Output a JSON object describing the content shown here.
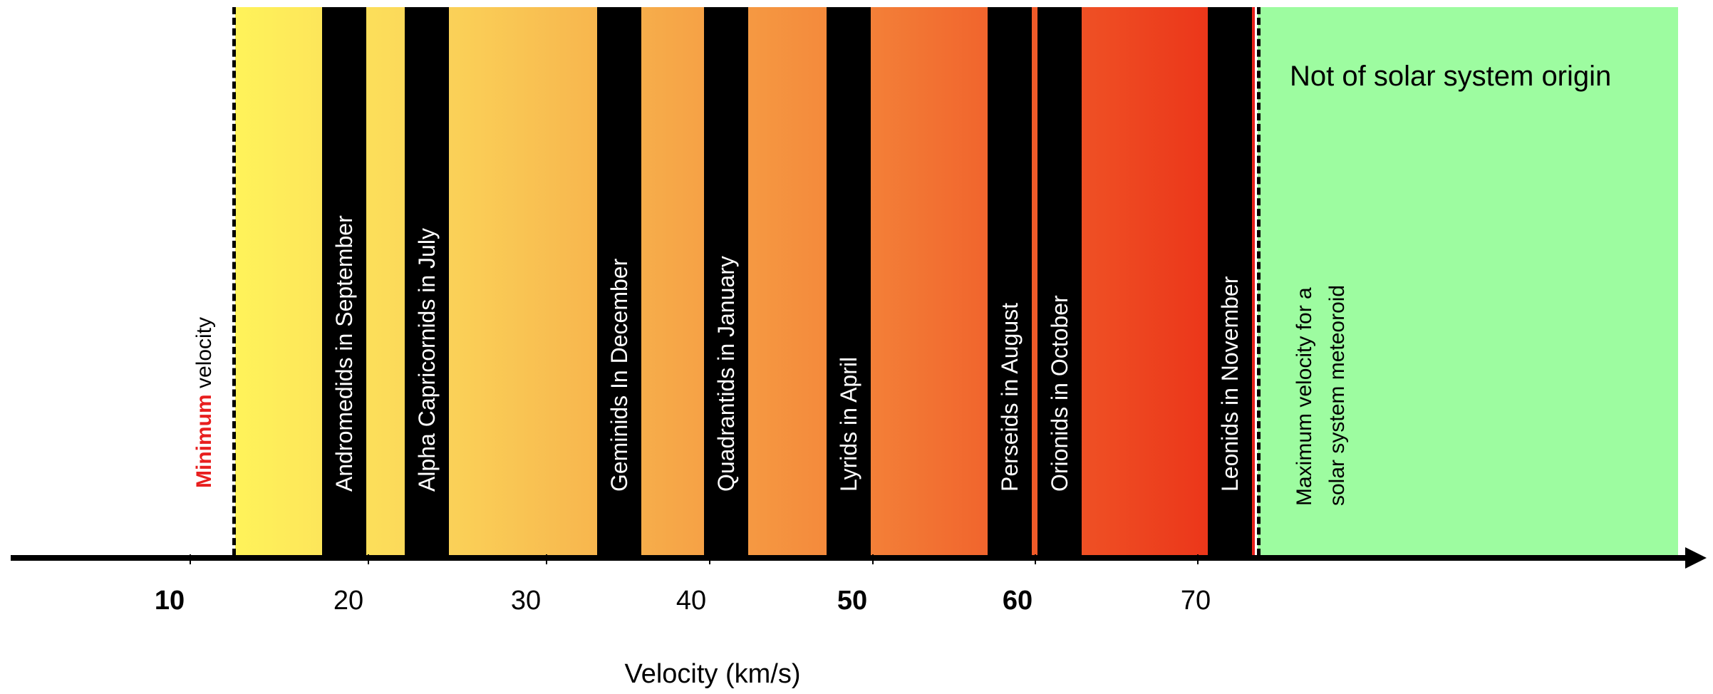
{
  "diagram": {
    "x_axis_label": "Velocity (km/s)",
    "ticks": [
      {
        "label": "10",
        "bold": true
      },
      {
        "label": "20",
        "bold": false
      },
      {
        "label": "30",
        "bold": false
      },
      {
        "label": "40",
        "bold": false
      },
      {
        "label": "50",
        "bold": true
      },
      {
        "label": "60",
        "bold": true
      },
      {
        "label": "70",
        "bold": false
      }
    ],
    "minimum_marker": {
      "highlight": "Minimum",
      "rest": " velocity"
    },
    "maximum_marker": {
      "line1": "Maximum velocity for a",
      "line2": "solar system meteoroid"
    },
    "region_label": "Not of solar system origin",
    "showers": [
      {
        "name": "Andromedids in September"
      },
      {
        "name": "Alpha Capricornids in July"
      },
      {
        "name": "Geminids In December"
      },
      {
        "name": "Quadrantids in January"
      },
      {
        "name": "Lyrids in April"
      },
      {
        "name": "Perseids in August"
      },
      {
        "name": "Orionids in October"
      },
      {
        "name": "Leonids in November"
      }
    ],
    "colors": {
      "gradient_start": "#fff35a",
      "gradient_end": "#ea2d16",
      "outside_region": "#9dfca0",
      "shower_bar": "#000000",
      "minimum_highlight": "#e81e1e"
    }
  }
}
